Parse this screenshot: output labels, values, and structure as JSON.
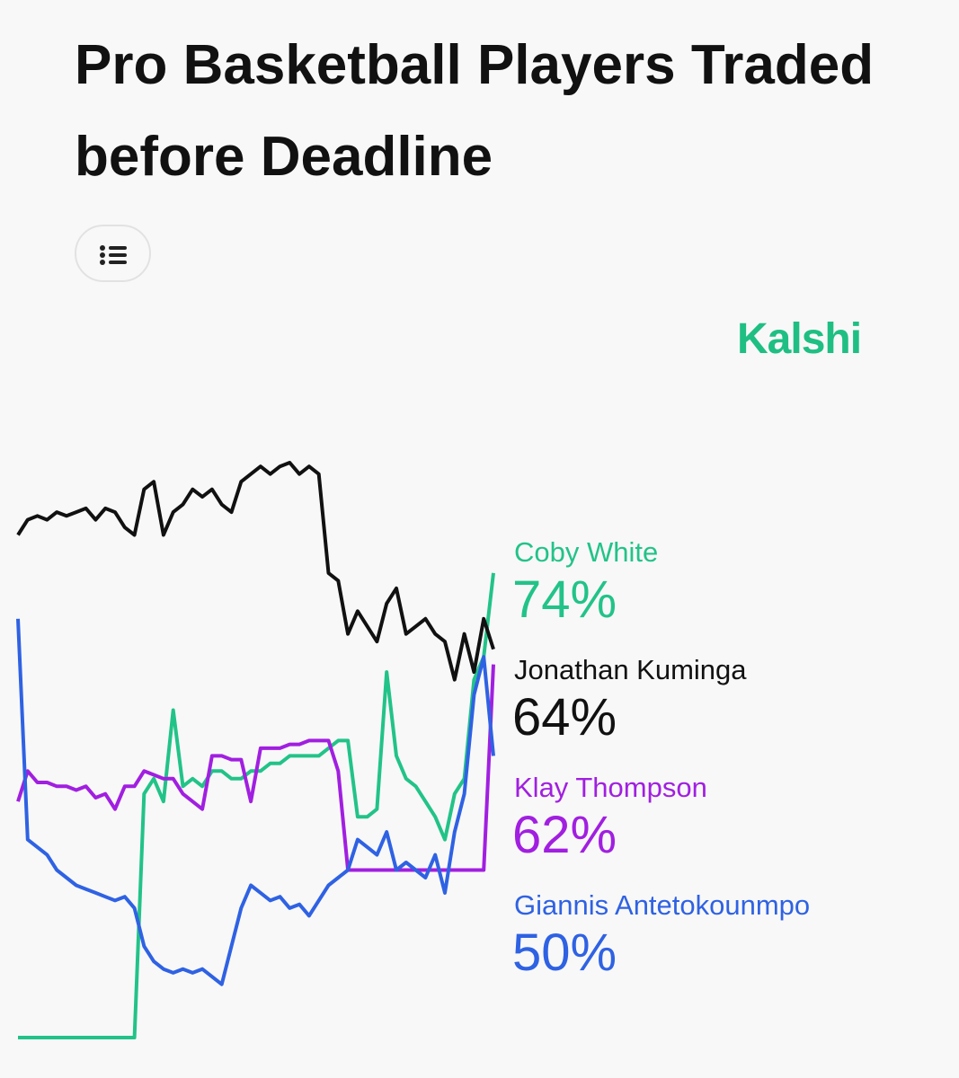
{
  "header": {
    "title": "Pro Basketball Players Traded before Deadline"
  },
  "brand": "Kalshi",
  "chart_data": {
    "type": "line",
    "series": [
      {
        "name": "Coby White",
        "color": "#22c388",
        "value_label": "74%",
        "values": [
          13,
          13,
          13,
          13,
          13,
          13,
          13,
          13,
          13,
          13,
          13,
          13,
          13,
          45,
          47,
          44,
          56,
          46,
          47,
          46,
          48,
          48,
          47,
          47,
          48,
          48,
          49,
          49,
          50,
          50,
          50,
          50,
          51,
          52,
          52,
          42,
          42,
          43,
          61,
          50,
          47,
          46,
          44,
          42,
          39,
          45,
          47,
          60,
          63,
          74
        ]
      },
      {
        "name": "Jonathan Kuminga",
        "color": "#111111",
        "value_label": "64%",
        "values": [
          79,
          81,
          81.5,
          81,
          82,
          81.5,
          82,
          82.5,
          81,
          82.5,
          82,
          80,
          79,
          85,
          86,
          79,
          82,
          83,
          85,
          84,
          85,
          83,
          82,
          86,
          87,
          88,
          87,
          88,
          88.5,
          87,
          88,
          87,
          74,
          73,
          66,
          69,
          67,
          65,
          70,
          72,
          66,
          67,
          68,
          66,
          65,
          60,
          66,
          61,
          68,
          64
        ]
      },
      {
        "name": "Klay Thompson",
        "color": "#a11fe0",
        "value_label": "62%",
        "values": [
          44,
          48,
          46.5,
          46.5,
          46,
          46,
          45.5,
          46,
          44.5,
          45,
          43,
          46,
          46,
          48,
          47.5,
          47,
          47,
          45,
          44,
          43,
          50,
          50,
          49.5,
          49.5,
          44,
          51,
          51,
          51,
          51.5,
          51.5,
          52,
          52,
          52,
          48,
          35,
          35,
          35,
          35,
          35,
          35,
          35,
          35,
          35,
          35,
          35,
          35,
          35,
          35,
          35,
          62
        ]
      },
      {
        "name": "Giannis Antetokounmpo",
        "color": "#2f62e3",
        "value_label": "50%",
        "values": [
          68,
          39,
          38,
          37,
          35,
          34,
          33,
          32.5,
          32,
          31.5,
          31,
          31.5,
          30,
          25,
          23,
          22,
          21.5,
          22,
          21.5,
          22,
          21,
          20,
          25,
          30,
          33,
          32,
          31,
          31.5,
          30,
          30.5,
          29,
          31,
          33,
          34,
          35,
          39,
          38,
          37,
          40,
          35,
          36,
          35,
          34,
          37,
          32,
          40,
          45,
          58,
          63,
          50
        ]
      }
    ]
  }
}
